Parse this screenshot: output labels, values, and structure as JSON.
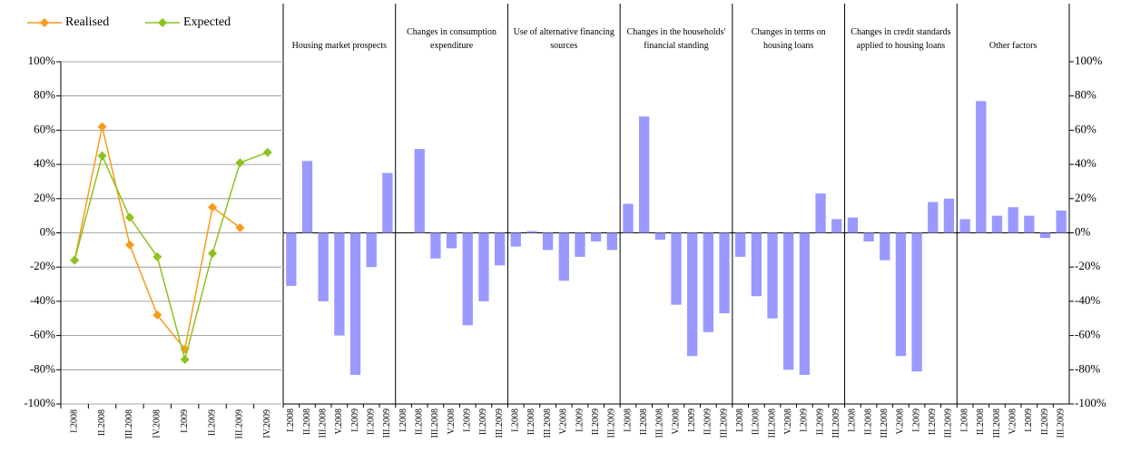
{
  "chart_data": [
    {
      "type": "line",
      "categories": [
        "I.2008",
        "II.2008",
        "III.2008",
        "IV.2008",
        "I.2009",
        "II.2009",
        "III.2009",
        "IV.2009"
      ],
      "series": [
        {
          "name": "Realised",
          "color": "#f79a1d",
          "values": [
            -16,
            62,
            -7,
            -48,
            -68,
            15,
            3,
            null
          ]
        },
        {
          "name": "Expected",
          "color": "#8dc21f",
          "values": [
            -16,
            45,
            9,
            -14,
            -74,
            -12,
            41,
            47
          ]
        }
      ],
      "ylim": [
        -100,
        100
      ],
      "yticks": [
        {
          "value": -100,
          "label": "-100%"
        },
        {
          "value": -80,
          "label": "-80%"
        },
        {
          "value": -60,
          "label": "-60%"
        },
        {
          "value": -40,
          "label": "-40%"
        },
        {
          "value": -20,
          "label": "-20%"
        },
        {
          "value": 0,
          "label": "0%"
        },
        {
          "value": 20,
          "label": "20%"
        },
        {
          "value": 40,
          "label": "40%"
        },
        {
          "value": 60,
          "label": "60%"
        },
        {
          "value": 80,
          "label": "80%"
        },
        {
          "value": 100,
          "label": "100%"
        }
      ],
      "grid": true
    },
    {
      "type": "bar",
      "color": "#9999ff",
      "categories": [
        "I.2008",
        "II.2008",
        "III.2008",
        "V.2008",
        "I.2009",
        "II.2009",
        "III.2009"
      ],
      "panels": [
        {
          "title": "Housing market prospects",
          "values": [
            -31,
            42,
            -40,
            -60,
            -83,
            -20,
            35
          ]
        },
        {
          "title": "Changes in consumption expenditure",
          "values": [
            0,
            49,
            -15,
            -9,
            -54,
            -40,
            -19
          ]
        },
        {
          "title": "Use of alternative financing sources",
          "values": [
            -8,
            1,
            -10,
            -28,
            -14,
            -5,
            -10
          ]
        },
        {
          "title": "Changes in the households' financial standing",
          "values": [
            17,
            68,
            -4,
            -42,
            -72,
            -58,
            -47
          ]
        },
        {
          "title": "Changes in terms on housing loans",
          "values": [
            -14,
            -37,
            -50,
            -80,
            -83,
            23,
            8
          ]
        },
        {
          "title": "Changes in credit standards applied to housing loans",
          "values": [
            9,
            -5,
            -16,
            -72,
            -81,
            18,
            20
          ]
        },
        {
          "title": "Other factors",
          "values": [
            8,
            77,
            10,
            15,
            10,
            -3,
            13
          ]
        }
      ],
      "ylim": [
        -100,
        100
      ],
      "yticks": [
        {
          "value": -100,
          "label": "-100%"
        },
        {
          "value": -80,
          "label": "-80%"
        },
        {
          "value": -60,
          "label": "-60%"
        },
        {
          "value": -40,
          "label": "-40%"
        },
        {
          "value": -20,
          "label": "-20%"
        },
        {
          "value": 0,
          "label": "0%"
        },
        {
          "value": 20,
          "label": "20%"
        },
        {
          "value": 40,
          "label": "40%"
        },
        {
          "value": 60,
          "label": "60%"
        },
        {
          "value": 80,
          "label": "80%"
        },
        {
          "value": 100,
          "label": "100%"
        }
      ]
    }
  ]
}
